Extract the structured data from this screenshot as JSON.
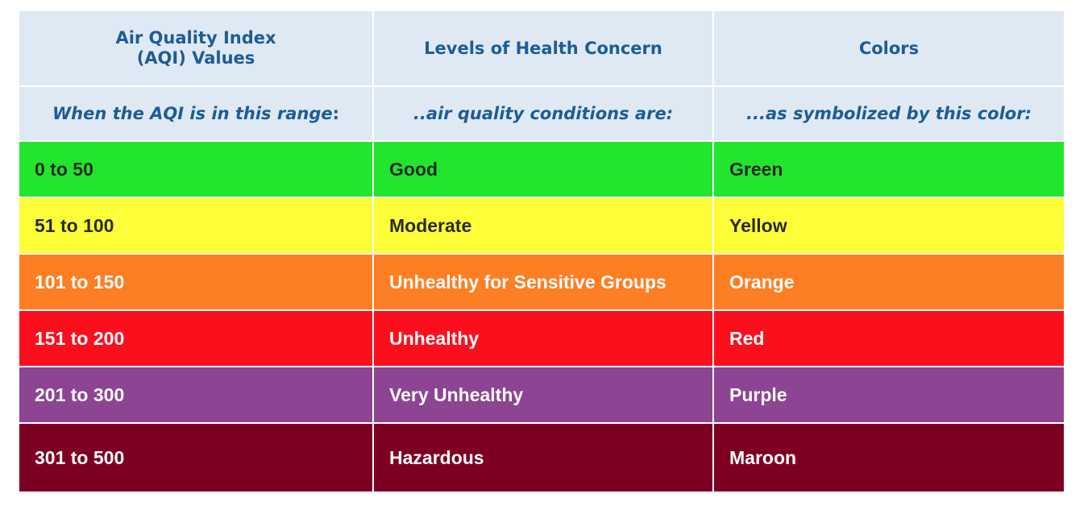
{
  "header": {
    "col1_line1": "Air Quality Index",
    "col1_line2": "(AQI) Values",
    "col2": "Levels of Health Concern",
    "col3": "Colors"
  },
  "subheader": {
    "col1": "When the AQI is in this range",
    "col1_colon": ":",
    "col2": "..air quality conditions are:",
    "col3": "...as symbolized by this color:"
  },
  "rows": [
    {
      "range": "0 to 50",
      "level": "Good",
      "color_name": "Green",
      "bg": "#22e52e",
      "text_color": "#2a2a2a"
    },
    {
      "range": "51 to 100",
      "level": "Moderate",
      "color_name": "Yellow",
      "bg": "#fdfd38",
      "text_color": "#2a2a2a"
    },
    {
      "range": "101 to 150",
      "level": "Unhealthy for Sensitive Groups",
      "color_name": "Orange",
      "bg": "#fd7e23",
      "text_color": "#ffffff"
    },
    {
      "range": "151 to 200",
      "level": "Unhealthy",
      "color_name": "Red",
      "bg": "#fb0f1d",
      "text_color": "#ffffff"
    },
    {
      "range": "201 to 300",
      "level": "Very Unhealthy",
      "color_name": "Purple",
      "bg": "#8d4493",
      "text_color": "#ffffff"
    },
    {
      "range": "301 to 500",
      "level": "Hazardous",
      "color_name": "Maroon",
      "bg": "#7d0022",
      "text_color": "#ffffff"
    }
  ]
}
